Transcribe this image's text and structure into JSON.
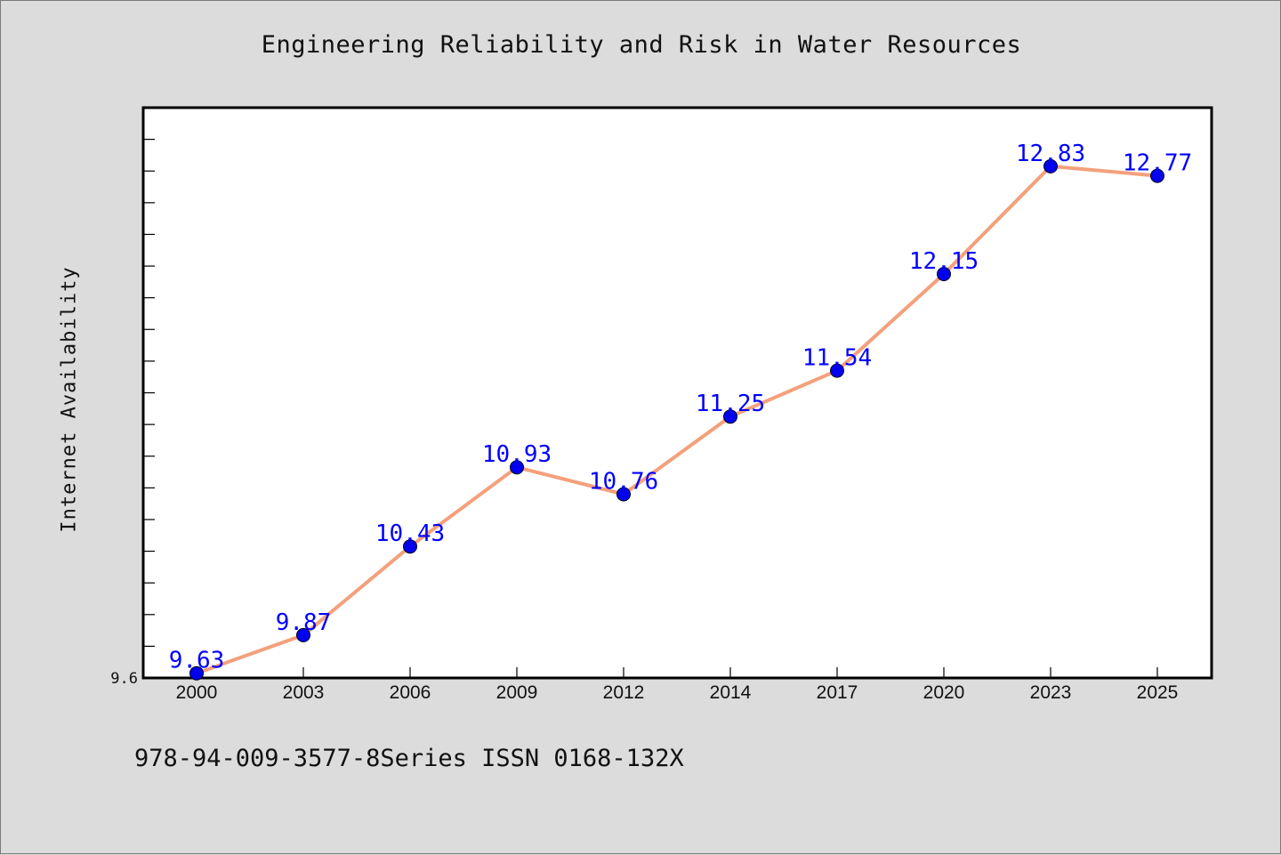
{
  "header": {
    "title": "Engineering Reliability and Risk in Water Resources"
  },
  "footer": {
    "note": "978-94-009-3577-8Series ISSN 0168-132X"
  },
  "colors": {
    "background": "#dcdcdc",
    "plot_background": "#ffffff",
    "line": "#f4a07c",
    "marker": "#0000ee",
    "data_label": "#0000ff",
    "axis": "#000000"
  },
  "chart_data": {
    "type": "line",
    "title": "Engineering Reliability and Risk in Water Resources",
    "xlabel": "",
    "ylabel": "Internet Availability",
    "categories": [
      "2000",
      "2003",
      "2006",
      "2009",
      "2012",
      "2014",
      "2017",
      "2020",
      "2023",
      "2025"
    ],
    "series": [
      {
        "values": [
          9.63,
          9.87,
          10.43,
          10.93,
          10.76,
          11.25,
          11.54,
          12.15,
          12.83,
          12.77
        ]
      }
    ],
    "data_labels": [
      "9.63",
      "9.87",
      "10.43",
      "10.93",
      "10.76",
      "11.25",
      "11.54",
      "12.15",
      "12.83",
      "12.77"
    ],
    "y_tick_labels": [
      "9.6"
    ],
    "ylim": [
      9.6,
      13.2
    ],
    "grid": false,
    "legend": "none"
  }
}
